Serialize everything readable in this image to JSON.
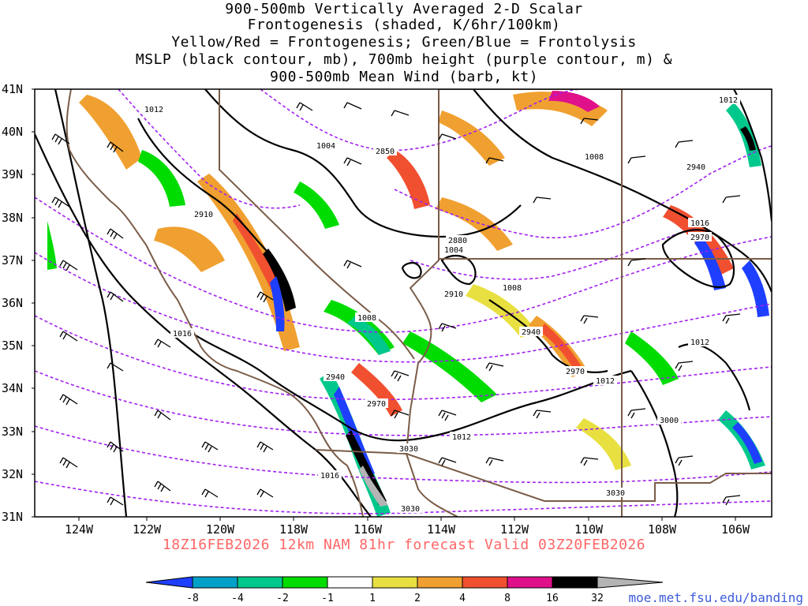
{
  "title_lines": [
    "900-500mb Vertically Averaged 2-D Scalar",
    "Frontogenesis (shaded, K/6hr/100km)",
    "Yellow/Red = Frontogenesis;  Green/Blue = Frontolysis",
    "MSLP (black contour, mb), 700mb height (purple contour, m) &",
    "900-500mb Mean Wind (barb, kt)"
  ],
  "footer": "18Z16FEB2026 12km NAM 81hr forecast Valid 03Z20FEB2026",
  "credit": "moe.met.fsu.edu/banding",
  "map": {
    "lat_labels": [
      "41N",
      "40N",
      "39N",
      "38N",
      "37N",
      "36N",
      "35N",
      "34N",
      "33N",
      "32N",
      "31N"
    ],
    "lon_labels": [
      "124W",
      "122W",
      "120W",
      "118W",
      "116W",
      "114W",
      "112W",
      "110W",
      "108W",
      "106W"
    ],
    "lat_range": [
      31,
      41
    ],
    "lon_range": [
      -125,
      -105
    ],
    "mslp_labels": [
      "1012",
      "1004",
      "1008",
      "1012",
      "1016",
      "1004",
      "1008",
      "1008",
      "1016",
      "1012",
      "1012",
      "1012",
      "1016"
    ],
    "height_labels": [
      "2850",
      "2940",
      "2910",
      "2880",
      "2970",
      "2910",
      "2940",
      "2970",
      "2940",
      "2970",
      "3030",
      "3000",
      "3030",
      "3030"
    ]
  },
  "colorbar": {
    "labels": [
      "-8",
      "-4",
      "-2",
      "-1",
      "1",
      "2",
      "4",
      "8",
      "16",
      "32"
    ],
    "colors": [
      "#1f3fff",
      "#00a0c8",
      "#00c88c",
      "#00dc00",
      "#ffffff",
      "#e8e040",
      "#f0a030",
      "#f05030",
      "#e0108a",
      "#000000",
      "#b4b4b4"
    ]
  },
  "colors": {
    "mslp_contour": "#000000",
    "height_contour": "#a020f0",
    "borders": "#7a5c48",
    "footer": "#ff6666",
    "credit": "#3b5bdb"
  }
}
